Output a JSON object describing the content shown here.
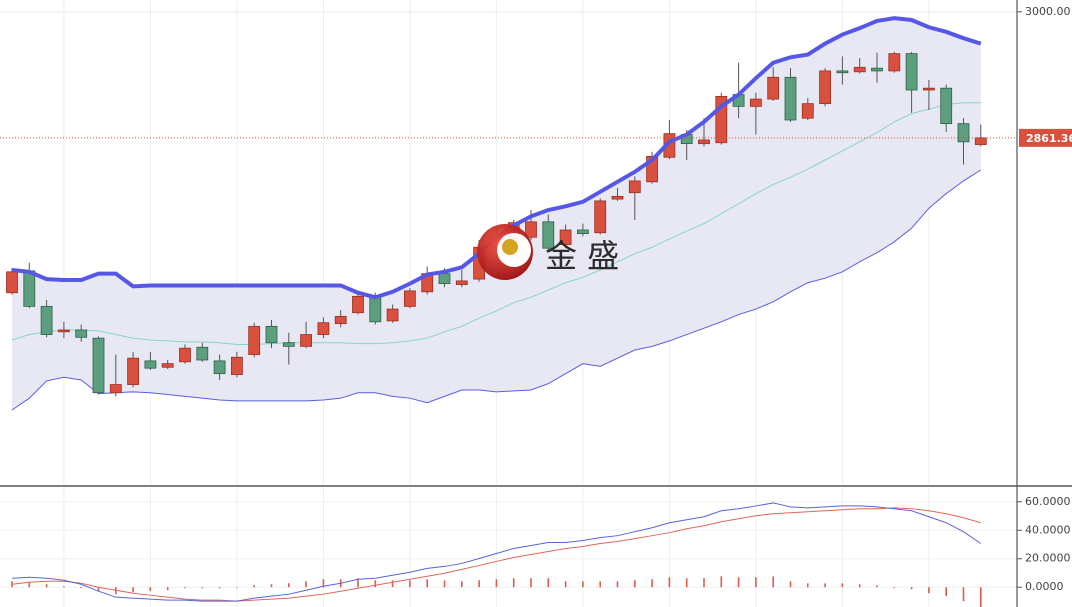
{
  "watermark": "金 盛",
  "chart_data": [
    {
      "type": "candlestick",
      "ylim": [
        2479.5,
        3013
      ],
      "yticks": [
        {
          "value": 3000,
          "label": "3000.00"
        }
      ],
      "price_marker": {
        "value": 2861.36,
        "label": "2861.36",
        "color": "#d9503f"
      },
      "up_color": "#d9503f",
      "down_color": "#5c9e7e",
      "open": [
        2691,
        2715,
        2676,
        2648,
        2650,
        2641,
        2581,
        2590,
        2616,
        2609,
        2615,
        2631,
        2616,
        2601,
        2623,
        2654,
        2636,
        2632,
        2645,
        2657,
        2669,
        2686,
        2660,
        2676,
        2692,
        2712,
        2700,
        2706,
        2742,
        2751,
        2752,
        2769,
        2744,
        2760,
        2757,
        2794,
        2801,
        2813,
        2840,
        2865,
        2855,
        2856,
        2909,
        2896,
        2904,
        2928,
        2883,
        2899,
        2935,
        2934,
        2938,
        2935,
        2954,
        2914,
        2916,
        2877,
        2854
      ],
      "high": [
        2718,
        2724,
        2683,
        2659,
        2656,
        2643,
        2623,
        2626,
        2626,
        2617,
        2634,
        2636,
        2623,
        2626,
        2658,
        2661,
        2647,
        2659,
        2664,
        2672,
        2692,
        2691,
        2678,
        2696,
        2720,
        2718,
        2716,
        2749,
        2762,
        2771,
        2782,
        2777,
        2766,
        2767,
        2795,
        2806,
        2819,
        2846,
        2881,
        2870,
        2883,
        2911,
        2944,
        2911,
        2939,
        2938,
        2905,
        2938,
        2951,
        2949,
        2955,
        2956,
        2956,
        2925,
        2920,
        2883,
        2876
      ],
      "low": [
        2689,
        2674,
        2642,
        2641,
        2637,
        2579,
        2577,
        2587,
        2606,
        2607,
        2613,
        2615,
        2595,
        2598,
        2620,
        2630,
        2612,
        2630,
        2641,
        2653,
        2667,
        2656,
        2658,
        2674,
        2689,
        2697,
        2697,
        2703,
        2738,
        2749,
        2749,
        2738,
        2740,
        2753,
        2755,
        2792,
        2771,
        2811,
        2838,
        2837,
        2852,
        2854,
        2883,
        2865,
        2902,
        2879,
        2881,
        2896,
        2920,
        2932,
        2922,
        2933,
        2889,
        2892,
        2868,
        2832,
        2852
      ],
      "close": [
        2714,
        2676,
        2645,
        2650,
        2642,
        2581,
        2590,
        2619,
        2608,
        2613,
        2630,
        2617,
        2602,
        2620,
        2654,
        2636,
        2632,
        2645,
        2658,
        2665,
        2687,
        2659,
        2673,
        2693,
        2712,
        2701,
        2704,
        2741,
        2752,
        2768,
        2769,
        2740,
        2760,
        2756,
        2792,
        2797,
        2814,
        2841,
        2866,
        2855,
        2859,
        2907,
        2896,
        2904,
        2928,
        2881,
        2899,
        2935,
        2933,
        2939,
        2935,
        2954,
        2914,
        2916,
        2877,
        2857,
        2861.36
      ],
      "bands": {
        "fill": "#e4e4f2",
        "upper_color": "#5557e6",
        "middle_color": "#86d6c6",
        "lower_color": "#5a5de0",
        "upper": [
          2716,
          2714,
          2706,
          2705,
          2705,
          2712,
          2712,
          2698,
          2699,
          2699,
          2699,
          2699,
          2699,
          2699,
          2699,
          2699,
          2699,
          2699,
          2699,
          2699,
          2691,
          2686,
          2692,
          2701,
          2711,
          2714,
          2719,
          2734,
          2752,
          2765,
          2775,
          2782,
          2786,
          2791,
          2802,
          2813,
          2824,
          2837,
          2857,
          2865,
          2879,
          2896,
          2909,
          2927,
          2944,
          2950,
          2953,
          2965,
          2975,
          2982,
          2990,
          2993,
          2991,
          2983,
          2978,
          2971,
          2965
        ],
        "middle": [
          2639,
          2645,
          2648,
          2650,
          2650,
          2649,
          2645,
          2641,
          2639,
          2638,
          2637,
          2637,
          2636,
          2634,
          2634,
          2635,
          2636,
          2636,
          2636,
          2636,
          2635,
          2635,
          2636,
          2638,
          2641,
          2648,
          2654,
          2663,
          2671,
          2680,
          2686,
          2694,
          2702,
          2708,
          2716,
          2725,
          2734,
          2741,
          2750,
          2759,
          2767,
          2778,
          2789,
          2800,
          2810,
          2818,
          2827,
          2837,
          2847,
          2857,
          2867,
          2879,
          2888,
          2893,
          2898,
          2900,
          2900
        ],
        "lower": [
          2562,
          2575,
          2594,
          2598,
          2595,
          2580,
          2581,
          2582,
          2581,
          2579,
          2577,
          2575,
          2573,
          2572,
          2572,
          2572,
          2572,
          2572,
          2573,
          2575,
          2581,
          2581,
          2577,
          2575,
          2570,
          2577,
          2584,
          2584,
          2582,
          2583,
          2584,
          2591,
          2602,
          2613,
          2610,
          2619,
          2628,
          2632,
          2638,
          2645,
          2652,
          2659,
          2667,
          2673,
          2681,
          2692,
          2702,
          2707,
          2714,
          2725,
          2735,
          2747,
          2762,
          2784,
          2800,
          2814,
          2826
        ]
      }
    },
    {
      "type": "macd",
      "ylim": [
        -13.9,
        69.7
      ],
      "yticks": [
        {
          "value": 60,
          "label": "60.0000"
        },
        {
          "value": 40,
          "label": "40.0000"
        },
        {
          "value": 20,
          "label": "20.0000"
        },
        {
          "value": 0,
          "label": "0.0000"
        }
      ],
      "dif_color": "#5b63d8",
      "dea_color": "#e0675a",
      "hist_color": "#e05a4f",
      "dif": [
        6.3,
        7.0,
        6.3,
        4.9,
        2.1,
        -2.8,
        -7.0,
        -7.7,
        -8.4,
        -9.1,
        -9.1,
        -9.8,
        -9.8,
        -9.8,
        -7.7,
        -6.3,
        -4.9,
        -2.1,
        0.7,
        2.8,
        5.6,
        6.3,
        8.4,
        10.5,
        13.2,
        14.6,
        16.7,
        20.2,
        23.7,
        27.2,
        29.3,
        31.4,
        31.4,
        32.8,
        34.8,
        36.2,
        39.0,
        41.8,
        45.3,
        47.4,
        49.5,
        53.7,
        55.1,
        57.1,
        59.2,
        56.4,
        55.7,
        56.4,
        57.1,
        57.1,
        56.4,
        55.1,
        53.7,
        49.5,
        45.3,
        39.0,
        30.7
      ],
      "dea": [
        2.1,
        3.5,
        4.2,
        4.2,
        2.8,
        0,
        -2.1,
        -4.2,
        -5.6,
        -7.0,
        -8.4,
        -9.1,
        -9.1,
        -9.8,
        -9.1,
        -8.4,
        -7.7,
        -6.3,
        -4.9,
        -2.8,
        -0.7,
        1.4,
        3.5,
        5.6,
        7.7,
        9.8,
        12.5,
        15.3,
        18.1,
        20.9,
        23.0,
        25.1,
        27.2,
        28.6,
        30.7,
        32.1,
        34.1,
        36.2,
        38.3,
        41.1,
        43.2,
        46.0,
        48.1,
        50.2,
        51.6,
        52.3,
        53.0,
        53.7,
        54.4,
        55.1,
        55.1,
        55.7,
        55.1,
        53.7,
        51.6,
        48.8,
        45.3
      ],
      "hist": [
        4.2,
        3.5,
        2.1,
        0.7,
        -0.7,
        -2.8,
        -4.9,
        -3.5,
        -2.8,
        -2.1,
        -0.7,
        -0.7,
        -0.7,
        0,
        1.4,
        2.1,
        2.8,
        4.2,
        5.6,
        5.6,
        6.3,
        4.9,
        4.9,
        4.9,
        5.5,
        4.8,
        4.2,
        4.9,
        5.6,
        6.3,
        6.3,
        6.3,
        4.2,
        4.2,
        4.1,
        4.1,
        4.9,
        5.6,
        7.0,
        6.3,
        6.3,
        7.7,
        7.0,
        6.9,
        7.6,
        4.1,
        2.7,
        2.7,
        2.7,
        2.0,
        1.3,
        -0.6,
        -1.4,
        -4.2,
        -6.3,
        -9.8,
        -14.6
      ]
    }
  ]
}
